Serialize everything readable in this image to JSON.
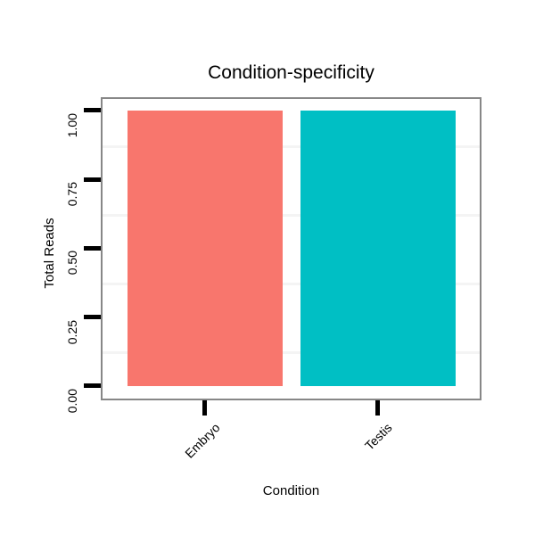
{
  "chart_data": {
    "type": "bar",
    "title": "Condition-specificity",
    "xlabel": "Condition",
    "ylabel": "Total Reads",
    "categories": [
      "Embryo",
      "Testis"
    ],
    "values": [
      1.0,
      1.0
    ],
    "series_colors": [
      "#F8766D",
      "#00BFC4"
    ],
    "ylim": [
      0,
      1
    ],
    "ytick_labels": [
      "0.00",
      "0.25",
      "0.50",
      "0.75",
      "1.00"
    ],
    "grid": "minor horizontal gridlines only, very faint",
    "legend_position": "none",
    "styling": {
      "panel_border_color": "#878787",
      "tick_color": "#000000",
      "minor_grid_color": "#f4f4f4",
      "background_color": "#ffffff",
      "x_label_rotation_deg": 45,
      "y_label_rotation_deg": 90
    }
  }
}
